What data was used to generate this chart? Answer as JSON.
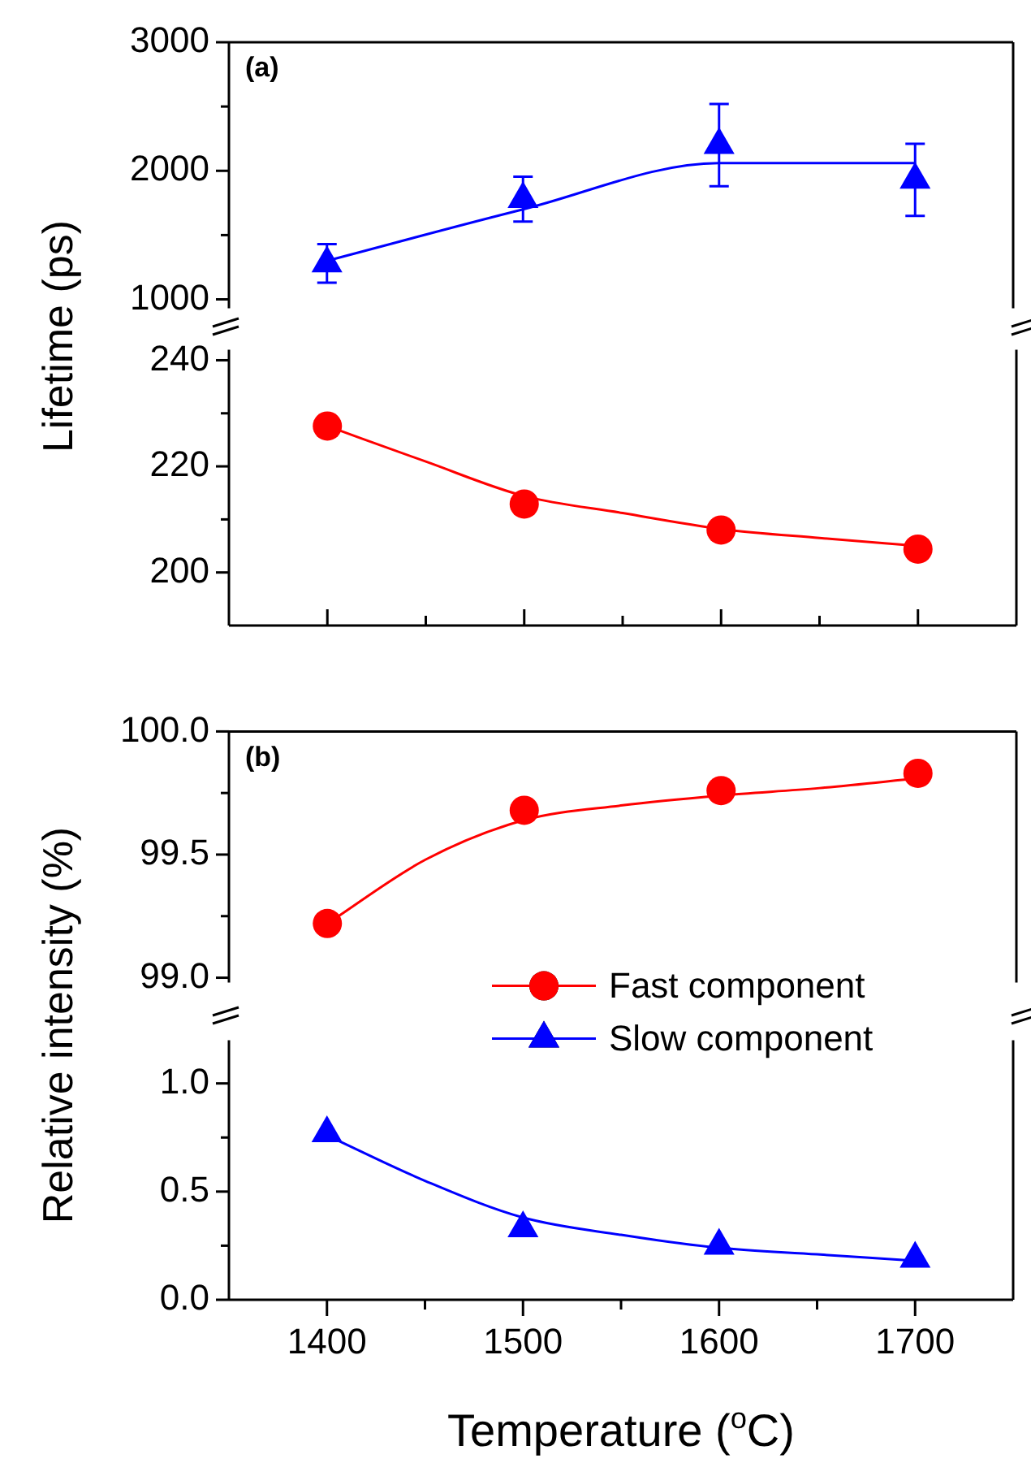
{
  "chart_data": [
    {
      "type": "scatter",
      "annotations": [
        "(a)"
      ],
      "xlim": [
        1350,
        1750
      ],
      "ylim": [
        930,
        3000
      ],
      "yticks": [
        1000,
        {
          "value": 1500,
          "label": null
        },
        2000,
        {
          "value": 2500,
          "label": null
        },
        3000
      ],
      "tick_labels": "y",
      "series": [
        {
          "type": "line",
          "color": "#0000ff",
          "x": [
            1400,
            1500,
            1600,
            1700
          ],
          "values": [
            1300,
            1700,
            2060,
            2060
          ],
          "marker": "none"
        },
        {
          "color": "#0000ff",
          "x": [
            1400,
            1500,
            1600,
            1700
          ],
          "values": [
            1280,
            1780,
            2200,
            1930
          ],
          "errors": [
            150,
            175,
            320,
            280
          ],
          "marker": "triangle"
        }
      ]
    },
    {
      "type": "scatter",
      "ylabel": "Lifetime (ps)",
      "xlim": [
        1350,
        1750
      ],
      "xticks": [
        1400,
        {
          "value": 1450,
          "label": null
        },
        1500,
        {
          "value": 1550,
          "label": null
        },
        1600,
        {
          "value": 1650,
          "label": null
        },
        1700
      ],
      "ylim": [
        190,
        242
      ],
      "yticks": [
        200,
        {
          "value": 210,
          "label": null
        },
        220,
        {
          "value": 230,
          "label": null
        },
        240
      ],
      "tick_labels": "y",
      "series": [
        {
          "type": "line",
          "color": "#ff0000",
          "x": [
            1400,
            1450,
            1500,
            1550,
            1600,
            1650,
            1700
          ],
          "values": [
            227.6,
            220.9,
            214.4,
            211.2,
            208.2,
            206.5,
            205
          ],
          "marker": "none"
        },
        {
          "color": "#ff0000",
          "x": [
            1400,
            1500,
            1600,
            1700
          ],
          "values": [
            227.6,
            212.9,
            208,
            204.4
          ],
          "marker": "circle"
        }
      ]
    },
    {
      "type": "scatter",
      "annotations": [
        "(b)"
      ],
      "legend": "bottom right",
      "xlim": [
        1350,
        1750
      ],
      "ylim": [
        98.98,
        100
      ],
      "yticks": [
        {
          "value": 99,
          "label": "99.0"
        },
        {
          "value": 99.25,
          "label": null
        },
        99.5,
        {
          "value": 99.75,
          "label": null
        },
        {
          "value": 100,
          "label": "100.0"
        }
      ],
      "tick_labels": "y",
      "series": [
        {
          "type": "line",
          "color": "#ff0000",
          "x": [
            1400,
            1450,
            1500,
            1550,
            1600,
            1650,
            1700
          ],
          "values": [
            99.22,
            99.48,
            99.64,
            99.7,
            99.74,
            99.77,
            99.81
          ],
          "marker": "none"
        },
        {
          "name": "Fast component",
          "color": "#ff0000",
          "x": [
            1400,
            1500,
            1600,
            1700
          ],
          "values": [
            99.22,
            99.68,
            99.76,
            99.83
          ],
          "marker": "circle"
        }
      ]
    },
    {
      "type": "scatter",
      "ylabel": "Relative intensity (%)",
      "xlabel": "Temperature ($^{o}$C)",
      "legend": "top right",
      "xlim": [
        1350,
        1750
      ],
      "xticks": [
        1400,
        {
          "value": 1450,
          "label": null
        },
        1500,
        {
          "value": 1550,
          "label": null
        },
        1600,
        {
          "value": 1650,
          "label": null
        },
        1700
      ],
      "ylim": [
        0,
        1.2
      ],
      "yticks": [
        {
          "value": 0,
          "label": "0.0"
        },
        {
          "value": 0.25,
          "label": null
        },
        0.5,
        {
          "value": 0.75,
          "label": null
        },
        {
          "value": 1,
          "label": "1.0"
        }
      ],
      "series": [
        {
          "type": "line",
          "color": "#0000ff",
          "x": [
            1400,
            1450,
            1500,
            1550,
            1600,
            1650,
            1700
          ],
          "values": [
            0.76,
            0.55,
            0.38,
            0.3,
            0.24,
            0.21,
            0.18
          ],
          "marker": "none"
        },
        {
          "name": "Slow component",
          "color": "#0000ff",
          "x": [
            1400,
            1500,
            1600,
            1700
          ],
          "values": [
            0.77,
            0.33,
            0.25,
            0.19
          ],
          "marker": "triangle"
        }
      ]
    }
  ]
}
